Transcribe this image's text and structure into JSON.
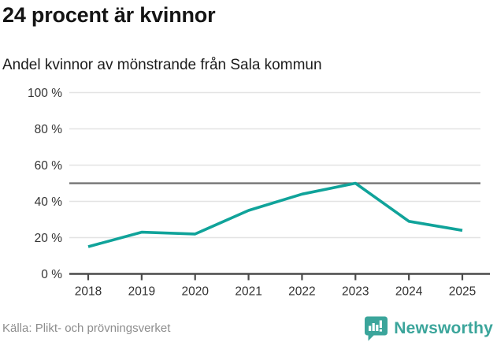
{
  "header": {
    "title": "24 procent är kvinnor",
    "subtitle": "Andel kvinnor av mönstrande från Sala kommun"
  },
  "chart_data": {
    "type": "line",
    "title": "24 procent är kvinnor",
    "subtitle": "Andel kvinnor av mönstrande från Sala kommun",
    "categories": [
      "2018",
      "2019",
      "2020",
      "2021",
      "2022",
      "2023",
      "2024",
      "2025"
    ],
    "series": [
      {
        "name": "Andel kvinnor",
        "values": [
          15,
          23,
          22,
          35,
          44,
          50,
          29,
          24
        ]
      }
    ],
    "unit": "%",
    "xlabel": "",
    "ylabel": "",
    "ylim": [
      0,
      100
    ],
    "yticks": [
      0,
      20,
      40,
      60,
      80,
      100
    ],
    "ytick_labels": [
      "0 %",
      "20 %",
      "40 %",
      "60 %",
      "80 %",
      "100 %"
    ],
    "grid": true,
    "legend": "none",
    "reference_line": {
      "value": 50
    },
    "colors": {
      "line": "#10a39a",
      "reference_line": "#6f6f6f",
      "grid": "#e3e3e3",
      "axis": "#4a4a4a",
      "tick_labels": "#333333"
    }
  },
  "footer": {
    "source": "Källa: Plikt- och prövningsverket",
    "brand": "Newsworthy",
    "brand_color": "#3ba59b"
  }
}
